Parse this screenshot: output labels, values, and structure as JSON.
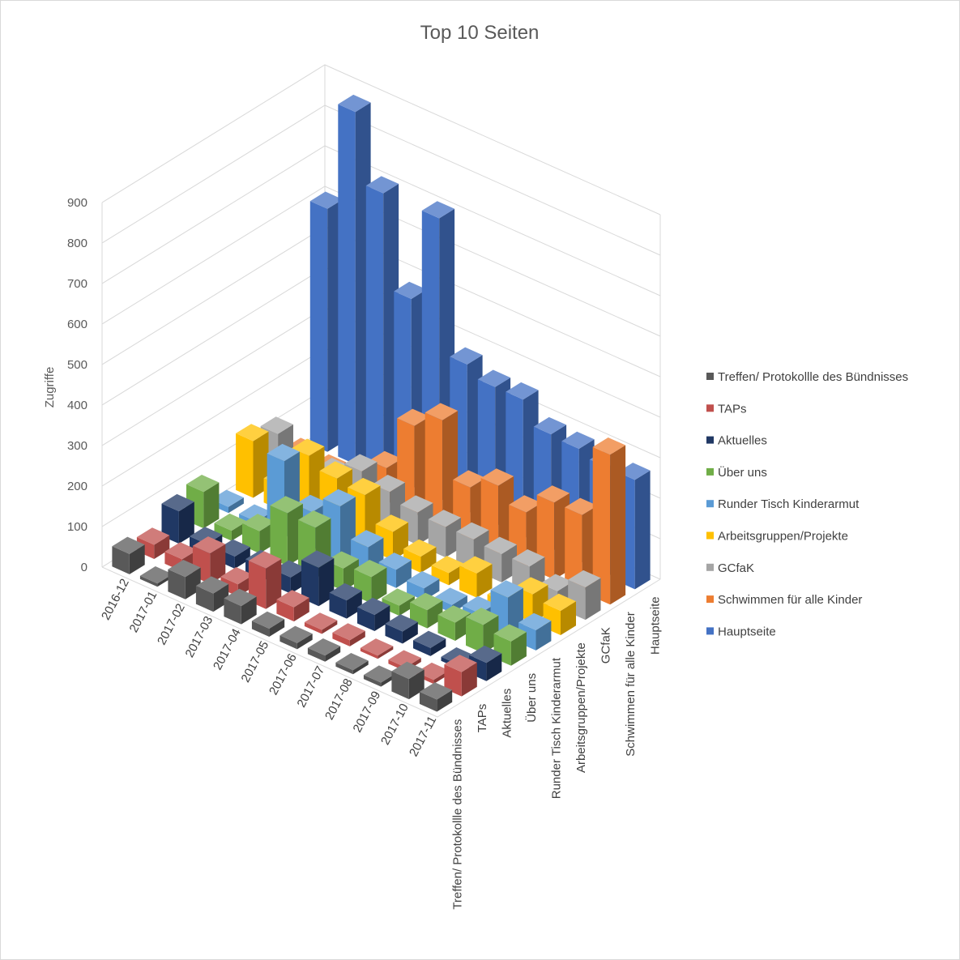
{
  "chart_data": {
    "type": "bar",
    "subtype": "3d-column",
    "title": "Top 10 Seiten",
    "ylabel": "Zugriffe",
    "xlabel": "",
    "ylim": [
      0,
      900
    ],
    "yticks": [
      0,
      100,
      200,
      300,
      400,
      500,
      600,
      700,
      800,
      900
    ],
    "grid": true,
    "legend_position": "right",
    "categories": [
      "2016-12",
      "2017-01",
      "2017-02",
      "2017-03",
      "2017-04",
      "2017-05",
      "2017-06",
      "2017-07",
      "2017-08",
      "2017-09",
      "2017-10",
      "2017-11"
    ],
    "series": [
      {
        "name": "Treffen/ Protokollle des Bündnisses",
        "color": "#595959",
        "values": [
          50,
          8,
          55,
          45,
          45,
          20,
          15,
          15,
          10,
          10,
          50,
          30
        ]
      },
      {
        "name": "TAPs",
        "color": "#c0504d",
        "values": [
          35,
          30,
          75,
          30,
          100,
          35,
          10,
          15,
          8,
          10,
          10,
          60
        ]
      },
      {
        "name": "Aktuelles",
        "color": "#203864",
        "values": [
          80,
          30,
          30,
          35,
          40,
          95,
          45,
          40,
          30,
          20,
          10,
          45
        ]
      },
      {
        "name": "Über uns",
        "color": "#70ad47",
        "values": [
          90,
          25,
          55,
          130,
          125,
          55,
          65,
          25,
          45,
          45,
          70,
          60
        ]
      },
      {
        "name": "Runder Tisch Kinderarmut",
        "color": "#5b9bd5",
        "values": [
          15,
          10,
          190,
          95,
          140,
          70,
          45,
          30,
          20,
          30,
          100,
          50
        ]
      },
      {
        "name": "Arbeitsgruppen/Projekte",
        "color": "#ffc000",
        "values": [
          140,
          60,
          165,
          140,
          130,
          70,
          40,
          30,
          60,
          20,
          70,
          60
        ]
      },
      {
        "name": "GCfaK",
        "color": "#a5a5a5",
        "values": [
          120,
          30,
          80,
          120,
          100,
          80,
          75,
          75,
          70,
          70,
          40,
          80
        ]
      },
      {
        "name": "Schwimmen für alle Kinder",
        "color": "#ed7d31",
        "values": [
          30,
          20,
          30,
          90,
          225,
          270,
          135,
          170,
          135,
          190,
          190,
          370
        ]
      },
      {
        "name": "Hauptseite",
        "color": "#4472c4",
        "values": [
          600,
          870,
          700,
          470,
          700,
          370,
          345,
          345,
          290,
          285,
          270,
          270
        ]
      }
    ]
  }
}
